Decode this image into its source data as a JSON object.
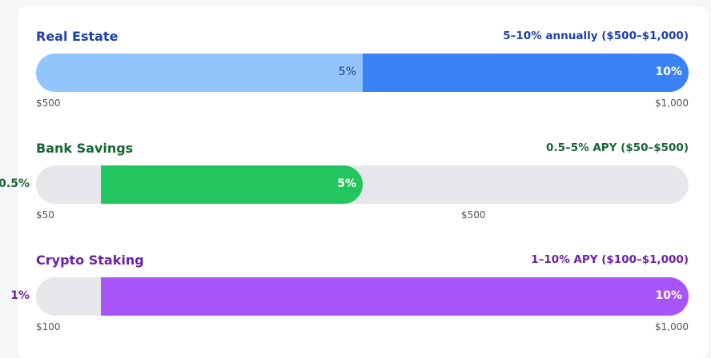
{
  "chart_data": {
    "type": "bar",
    "rows": [
      {
        "title": "Real Estate",
        "range_text": "5–10% annually ($500–$1,000)",
        "min_rate": 5,
        "max_rate": 10,
        "min_rate_label": "5%",
        "max_rate_label": "10%",
        "axis_start_label": "$500",
        "axis_end_label": "$1,000",
        "title_color": "#1e40af",
        "colors": {
          "track": "#93c5fd",
          "fill": "#3b82f6",
          "low_text": "#1e3a8a",
          "high_text": "#ffffff"
        }
      },
      {
        "title": "Bank Savings",
        "range_text": "0.5–5% APY ($50–$500)",
        "min_rate": 0.5,
        "max_rate": 5,
        "min_rate_label": "0.5%",
        "max_rate_label": "5%",
        "axis_start_label": "$50",
        "axis_end_label": "$500",
        "title_color": "#166534",
        "colors": {
          "track": "#e5e7eb",
          "fill": "#22c55e",
          "low_text": "#166534",
          "high_text": "#ffffff"
        }
      },
      {
        "title": "Crypto Staking",
        "range_text": "1–10% APY ($100–$1,000)",
        "min_rate": 1,
        "max_rate": 10,
        "min_rate_label": "1%",
        "max_rate_label": "10%",
        "axis_start_label": "$100",
        "axis_end_label": "$1,000",
        "title_color": "#6b21a8",
        "colors": {
          "track": "#e5e7eb",
          "fill": "#a855f7",
          "low_text": "#6b21a8",
          "high_text": "#ffffff"
        }
      }
    ]
  }
}
